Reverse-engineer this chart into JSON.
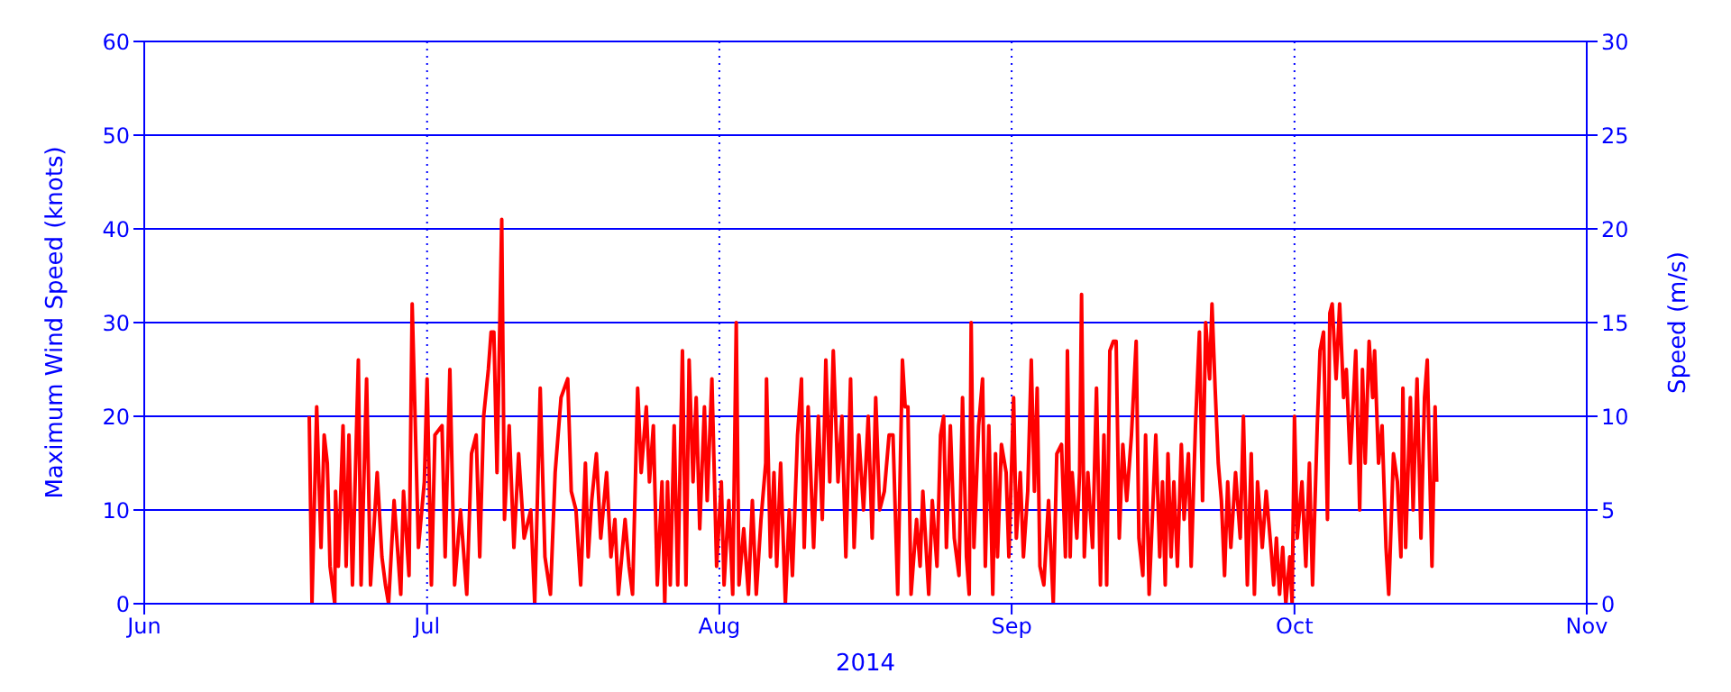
{
  "chart_data": {
    "type": "line",
    "xlabel": "2014",
    "ylabel": "Maximum Wind Speed (knots)",
    "y2label": "Speed (m/s)",
    "xlim": [
      "2014-06-01",
      "2014-11-01"
    ],
    "xticks": [
      {
        "value": "2014-06-01",
        "label": "Jun"
      },
      {
        "value": "2014-07-01",
        "label": "Jul"
      },
      {
        "value": "2014-08-01",
        "label": "Aug"
      },
      {
        "value": "2014-09-01",
        "label": "Sep"
      },
      {
        "value": "2014-10-01",
        "label": "Oct"
      },
      {
        "value": "2014-11-01",
        "label": "Nov"
      }
    ],
    "ylim": [
      0,
      60
    ],
    "yticks": [
      0,
      10,
      20,
      30,
      40,
      50,
      60
    ],
    "y2lim": [
      0,
      30
    ],
    "y2ticks": [
      0,
      5,
      10,
      15,
      20,
      25,
      30
    ],
    "grid": true,
    "series": [
      {
        "color": "#ff0000",
        "x": [
          "2014-06-18T12:00",
          "2014-06-18T19:00",
          "2014-06-19T07:00",
          "2014-06-19T18:00",
          "2014-06-20T02:00",
          "2014-06-20T10:00",
          "2014-06-20T17:00",
          "2014-06-21T05:00",
          "2014-06-21T07:00",
          "2014-06-21T14:00",
          "2014-06-22T02:00",
          "2014-06-22T10:00",
          "2014-06-22T17:00",
          "2014-06-23T02:00",
          "2014-06-23T17:00",
          "2014-06-24T00:00",
          "2014-06-24T14:00",
          "2014-06-25T00:00",
          "2014-06-25T17:00",
          "2014-06-26T05:00",
          "2014-06-26T14:00",
          "2014-06-26T22:00",
          "2014-06-27T12:00",
          "2014-06-28T05:00",
          "2014-06-28T12:00",
          "2014-06-29T02:00",
          "2014-06-29T10:00",
          "2014-06-30T02:00",
          "2014-06-30T17:00",
          "2014-07-01T00:00",
          "2014-07-01T11:00",
          "2014-07-01T20:00",
          "2014-07-02T14:00",
          "2014-07-02T22:00",
          "2014-07-03T10:00",
          "2014-07-03T22:00",
          "2014-07-04T13:00",
          "2014-07-05T05:00",
          "2014-07-05T17:00",
          "2014-07-06T05:00",
          "2014-07-06T14:00",
          "2014-07-07T00:00",
          "2014-07-07T12:00",
          "2014-07-07T19:00",
          "2014-07-08T02:00",
          "2014-07-08T10:00",
          "2014-07-08T22:00",
          "2014-07-09T05:00",
          "2014-07-09T17:00",
          "2014-07-10T05:00",
          "2014-07-10T17:00",
          "2014-07-11T07:00",
          "2014-07-12T00:00",
          "2014-07-12T10:00",
          "2014-07-13T00:00",
          "2014-07-13T12:00",
          "2014-07-14T02:00",
          "2014-07-14T14:00",
          "2014-07-15T05:00",
          "2014-07-15T22:00",
          "2014-07-16T07:00",
          "2014-07-16T19:00",
          "2014-07-17T07:00",
          "2014-07-17T19:00",
          "2014-07-18T02:00",
          "2014-07-18T11:00",
          "2014-07-18T23:00",
          "2014-07-19T10:00",
          "2014-07-20T01:00",
          "2014-07-20T12:00",
          "2014-07-20T22:00",
          "2014-07-21T07:00",
          "2014-07-22T00:00",
          "2014-07-22T10:00",
          "2014-07-22T19:00",
          "2014-07-23T08:00",
          "2014-07-23T17:00",
          "2014-07-24T06:00",
          "2014-07-24T14:00",
          "2014-07-25T00:00",
          "2014-07-25T10:00",
          "2014-07-25T22:00",
          "2014-07-26T05:00",
          "2014-07-26T12:00",
          "2014-07-26T19:00",
          "2014-07-27T05:00",
          "2014-07-27T14:00",
          "2014-07-28T02:00",
          "2014-07-28T11:00",
          "2014-07-28T19:00",
          "2014-07-29T05:00",
          "2014-07-29T13:00",
          "2014-07-29T22:00",
          "2014-07-30T10:00",
          "2014-07-30T17:00",
          "2014-07-31T05:00",
          "2014-07-31T17:00",
          "2014-08-01T05:00",
          "2014-08-01T12:00",
          "2014-08-02T00:00",
          "2014-08-02T10:00",
          "2014-08-02T19:00",
          "2014-08-03T02:00",
          "2014-08-03T14:00",
          "2014-08-04T02:00",
          "2014-08-04T12:00",
          "2014-08-04T22:00",
          "2014-08-05T10:00",
          "2014-08-05T22:00",
          "2014-08-06T00:00",
          "2014-08-06T10:00",
          "2014-08-06T19:00",
          "2014-08-07T02:00",
          "2014-08-07T12:00",
          "2014-08-08T00:00",
          "2014-08-08T10:00",
          "2014-08-08T18:00",
          "2014-08-09T07:00",
          "2014-08-09T17:00",
          "2014-08-10T00:00",
          "2014-08-10T10:00",
          "2014-08-11T00:00",
          "2014-08-11T12:00",
          "2014-08-11T22:00",
          "2014-08-12T07:00",
          "2014-08-12T17:00",
          "2014-08-13T02:00",
          "2014-08-13T14:00",
          "2014-08-14T00:00",
          "2014-08-14T10:00",
          "2014-08-14T22:00",
          "2014-08-15T07:00",
          "2014-08-15T19:00",
          "2014-08-16T07:00",
          "2014-08-16T19:00",
          "2014-08-17T05:00",
          "2014-08-17T14:00",
          "2014-08-18T00:00",
          "2014-08-18T12:00",
          "2014-08-19T00:00",
          "2014-08-19T10:00",
          "2014-08-19T22:00",
          "2014-08-20T10:00",
          "2014-08-20T17:00",
          "2014-08-21T00:00",
          "2014-08-21T08:00",
          "2014-08-21T22:00",
          "2014-08-22T07:00",
          "2014-08-22T14:00",
          "2014-08-23T05:00",
          "2014-08-23T14:00",
          "2014-08-24T02:00",
          "2014-08-24T11:00",
          "2014-08-24T19:00",
          "2014-08-25T02:00",
          "2014-08-25T12:00",
          "2014-08-25T22:00",
          "2014-08-26T10:00",
          "2014-08-26T19:00",
          "2014-08-27T05:00",
          "2014-08-27T12:00",
          "2014-08-27T17:00",
          "2014-08-28T00:00",
          "2014-08-28T12:00",
          "2014-08-28T22:00",
          "2014-08-29T05:00",
          "2014-08-29T14:00",
          "2014-08-30T00:00",
          "2014-08-30T07:00",
          "2014-08-30T12:00",
          "2014-08-30T22:00",
          "2014-08-31T10:00",
          "2014-08-31T17:00",
          "2014-09-01T05:00",
          "2014-09-01T12:00",
          "2014-09-01T22:00",
          "2014-09-02T06:00",
          "2014-09-02T17:00",
          "2014-09-03T02:00",
          "2014-09-03T10:00",
          "2014-09-03T17:00",
          "2014-09-04T00:00",
          "2014-09-04T10:00",
          "2014-09-04T22:00",
          "2014-09-05T10:00",
          "2014-09-05T19:00",
          "2014-09-06T07:00",
          "2014-09-06T17:00",
          "2014-09-06T22:00",
          "2014-09-07T05:00",
          "2014-09-07T10:00",
          "2014-09-07T22:00",
          "2014-09-08T05:00",
          "2014-09-08T10:00",
          "2014-09-08T17:00",
          "2014-09-09T02:00",
          "2014-09-09T14:00",
          "2014-09-10T00:00",
          "2014-09-10T10:00",
          "2014-09-10T19:00",
          "2014-09-11T02:00",
          "2014-09-11T10:00",
          "2014-09-11T19:00",
          "2014-09-12T02:00",
          "2014-09-12T10:00",
          "2014-09-12T19:00",
          "2014-09-13T05:00",
          "2014-09-13T17:00",
          "2014-09-14T05:00",
          "2014-09-14T12:00",
          "2014-09-14T22:00",
          "2014-09-15T05:00",
          "2014-09-15T14:00",
          "2014-09-16T02:00",
          "2014-09-16T07:00",
          "2014-09-16T17:00",
          "2014-09-17T00:00",
          "2014-09-17T07:00",
          "2014-09-17T14:00",
          "2014-09-17T22:00",
          "2014-09-18T05:00",
          "2014-09-18T14:00",
          "2014-09-19T00:00",
          "2014-09-19T07:00",
          "2014-09-19T18:00",
          "2014-09-20T01:00",
          "2014-09-20T12:00",
          "2014-09-20T22:00",
          "2014-09-21T06:00",
          "2014-09-21T14:00",
          "2014-09-22T00:00",
          "2014-09-22T06:00",
          "2014-09-22T14:00",
          "2014-09-22T22:00",
          "2014-09-23T06:00",
          "2014-09-23T14:00",
          "2014-09-23T22:00",
          "2014-09-24T06:00",
          "2014-09-24T18:00",
          "2014-09-25T06:00",
          "2014-09-25T14:00",
          "2014-09-26T00:00",
          "2014-09-26T10:00",
          "2014-09-26T18:00",
          "2014-09-27T02:00",
          "2014-09-27T14:00",
          "2014-09-28T00:00",
          "2014-09-28T12:00",
          "2014-09-28T19:00",
          "2014-09-29T02:00",
          "2014-09-29T10:00",
          "2014-09-29T18:00",
          "2014-09-30T02:00",
          "2014-09-30T12:00",
          "2014-09-30T18:00",
          "2014-10-01T00:00",
          "2014-10-01T07:00",
          "2014-10-01T19:00",
          "2014-10-02T05:00",
          "2014-10-02T14:00",
          "2014-10-02T22:00",
          "2014-10-03T10:00",
          "2014-10-03T17:00",
          "2014-10-04T02:00",
          "2014-10-04T12:00",
          "2014-10-04T18:00",
          "2014-10-05T00:00",
          "2014-10-05T10:00",
          "2014-10-05T19:00",
          "2014-10-06T05:00",
          "2014-10-06T12:00",
          "2014-10-06T22:00",
          "2014-10-07T12:00",
          "2014-10-07T22:00",
          "2014-10-08T05:00",
          "2014-10-08T12:00",
          "2014-10-08T22:00",
          "2014-10-09T07:00",
          "2014-10-09T12:00",
          "2014-10-09T22:00",
          "2014-10-10T07:00",
          "2014-10-10T17:00",
          "2014-10-11T00:00",
          "2014-10-11T12:00",
          "2014-10-11T22:00",
          "2014-10-12T07:00",
          "2014-10-12T12:00",
          "2014-10-12T19:00",
          "2014-10-13T07:00",
          "2014-10-13T14:00",
          "2014-10-14T00:00",
          "2014-10-14T10:00",
          "2014-10-14T19:00",
          "2014-10-15T02:00",
          "2014-10-15T10:00",
          "2014-10-15T14:00",
          "2014-10-15T22:00",
          "2014-10-16T02:00"
        ],
        "values": [
          20,
          0,
          21,
          6,
          18,
          15,
          4,
          0,
          12,
          4,
          19,
          4,
          18,
          2,
          26,
          2,
          24,
          2,
          14,
          5,
          2,
          0,
          11,
          1,
          12,
          3,
          32,
          6,
          13,
          24,
          2,
          18,
          19,
          5,
          25,
          2,
          10,
          1,
          16,
          18,
          5,
          20,
          25,
          29,
          29,
          14,
          41,
          9,
          19,
          6,
          16,
          7,
          10,
          0,
          23,
          5,
          1,
          14,
          22,
          24,
          12,
          10,
          2,
          15,
          5,
          11,
          16,
          7,
          14,
          5,
          9,
          1,
          9,
          4,
          1,
          23,
          14,
          21,
          13,
          19,
          2,
          13,
          0,
          13,
          2,
          19,
          2,
          27,
          2,
          26,
          13,
          22,
          8,
          21,
          11,
          24,
          4,
          13,
          2,
          11,
          1,
          30,
          2,
          8,
          1,
          11,
          1,
          9,
          15,
          24,
          5,
          14,
          4,
          15,
          0,
          10,
          3,
          18,
          24,
          6,
          21,
          6,
          20,
          9,
          26,
          13,
          27,
          13,
          20,
          5,
          24,
          6,
          18,
          10,
          20,
          7,
          22,
          10,
          12,
          18,
          18,
          1,
          26,
          21,
          21,
          1,
          9,
          4,
          12,
          1,
          11,
          4,
          18,
          20,
          6,
          19,
          7,
          3,
          22,
          5,
          1,
          30,
          6,
          19,
          24,
          4,
          19,
          1,
          16,
          5,
          17,
          14,
          5,
          22,
          7,
          14,
          5,
          12,
          26,
          12,
          23,
          4,
          2,
          11,
          0,
          16,
          17,
          5,
          27,
          5,
          14,
          7,
          14,
          33,
          5,
          14,
          6,
          23,
          2,
          18,
          2,
          27,
          28,
          28,
          7,
          17,
          11,
          18,
          28,
          7,
          3,
          18,
          1,
          13,
          18,
          5,
          13,
          2,
          16,
          5,
          13,
          4,
          17,
          9,
          16,
          4,
          19,
          29,
          11,
          30,
          24,
          32,
          23,
          15,
          11,
          3,
          13,
          6,
          14,
          7,
          20,
          2,
          16,
          1,
          13,
          6,
          12,
          6,
          2,
          7,
          1,
          6,
          0,
          5,
          0,
          20,
          7,
          13,
          4,
          15,
          2,
          19,
          27,
          29,
          9,
          31,
          32,
          24,
          32,
          22,
          25,
          15,
          27,
          10,
          25,
          15,
          28,
          22,
          27,
          15,
          19,
          6,
          1,
          16,
          13,
          5,
          23,
          6,
          22,
          10,
          24,
          7,
          22,
          26,
          11,
          4,
          21,
          13
        ]
      }
    ]
  }
}
